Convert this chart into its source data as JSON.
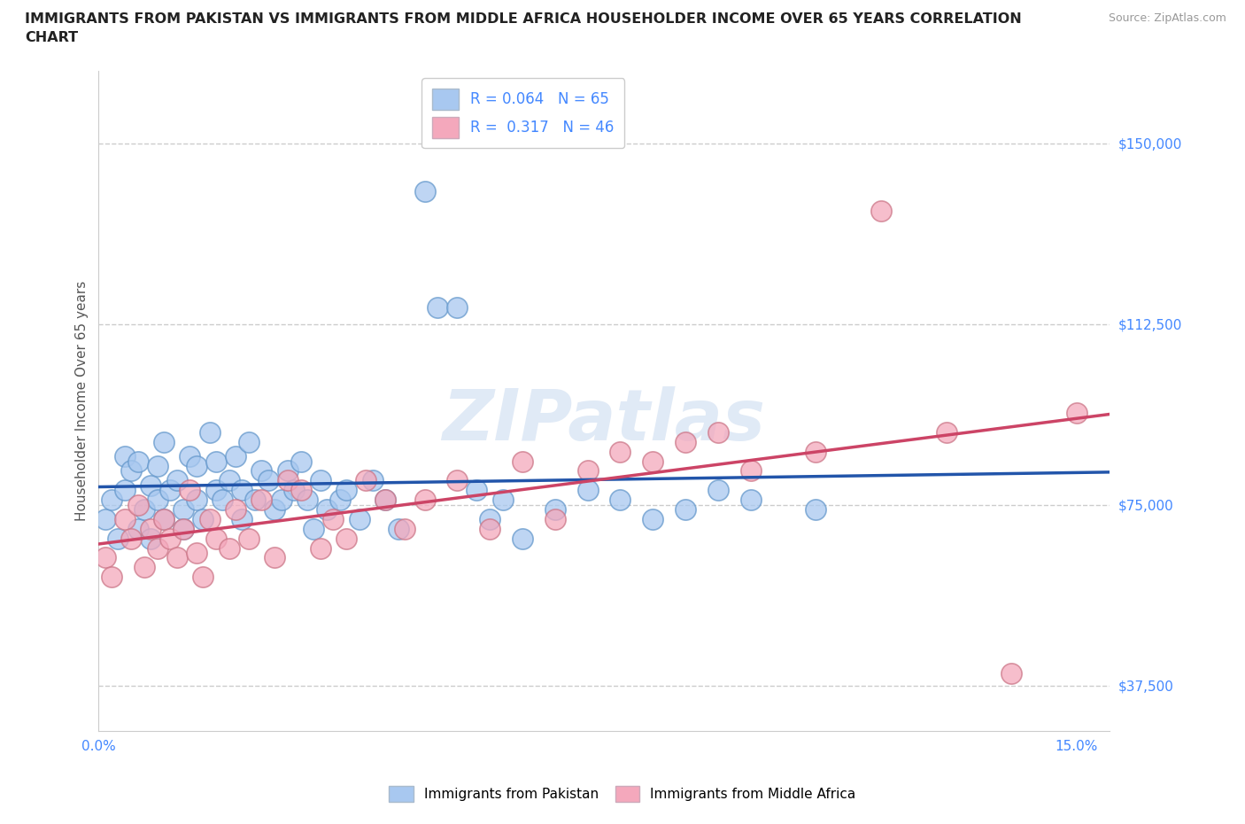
{
  "title_line1": "IMMIGRANTS FROM PAKISTAN VS IMMIGRANTS FROM MIDDLE AFRICA HOUSEHOLDER INCOME OVER 65 YEARS CORRELATION",
  "title_line2": "CHART",
  "source": "Source: ZipAtlas.com",
  "ylabel": "Householder Income Over 65 years",
  "xlim": [
    0.0,
    0.155
  ],
  "ylim": [
    28000,
    165000
  ],
  "yticks": [
    37500,
    75000,
    112500,
    150000
  ],
  "ytick_labels": [
    "$37,500",
    "$75,000",
    "$112,500",
    "$150,000"
  ],
  "xtick_positions": [
    0.0,
    0.025,
    0.05,
    0.075,
    0.1,
    0.125,
    0.15
  ],
  "xtick_labels": [
    "0.0%",
    "",
    "",
    "",
    "",
    "",
    "15.0%"
  ],
  "color_pakistan": "#a8c8f0",
  "color_africa": "#f4a8bc",
  "line_color_pakistan": "#2255aa",
  "line_color_africa": "#cc4466",
  "R_pakistan": 0.064,
  "N_pakistan": 65,
  "R_africa": 0.317,
  "N_africa": 46,
  "pakistan_x": [
    0.001,
    0.002,
    0.003,
    0.004,
    0.004,
    0.005,
    0.006,
    0.006,
    0.007,
    0.008,
    0.008,
    0.009,
    0.009,
    0.01,
    0.01,
    0.011,
    0.012,
    0.013,
    0.013,
    0.014,
    0.015,
    0.015,
    0.016,
    0.017,
    0.018,
    0.018,
    0.019,
    0.02,
    0.021,
    0.022,
    0.022,
    0.023,
    0.024,
    0.025,
    0.026,
    0.027,
    0.028,
    0.029,
    0.03,
    0.031,
    0.032,
    0.033,
    0.034,
    0.035,
    0.037,
    0.038,
    0.04,
    0.042,
    0.044,
    0.046,
    0.05,
    0.052,
    0.055,
    0.058,
    0.06,
    0.062,
    0.065,
    0.07,
    0.075,
    0.08,
    0.085,
    0.09,
    0.095,
    0.1,
    0.11
  ],
  "pakistan_y": [
    72000,
    76000,
    68000,
    85000,
    78000,
    82000,
    70000,
    84000,
    74000,
    79000,
    68000,
    76000,
    83000,
    72000,
    88000,
    78000,
    80000,
    74000,
    70000,
    85000,
    76000,
    83000,
    72000,
    90000,
    78000,
    84000,
    76000,
    80000,
    85000,
    72000,
    78000,
    88000,
    76000,
    82000,
    80000,
    74000,
    76000,
    82000,
    78000,
    84000,
    76000,
    70000,
    80000,
    74000,
    76000,
    78000,
    72000,
    80000,
    76000,
    70000,
    140000,
    116000,
    116000,
    78000,
    72000,
    76000,
    68000,
    74000,
    78000,
    76000,
    72000,
    74000,
    78000,
    76000,
    74000
  ],
  "africa_x": [
    0.001,
    0.002,
    0.004,
    0.005,
    0.006,
    0.007,
    0.008,
    0.009,
    0.01,
    0.011,
    0.012,
    0.013,
    0.014,
    0.015,
    0.016,
    0.017,
    0.018,
    0.02,
    0.021,
    0.023,
    0.025,
    0.027,
    0.029,
    0.031,
    0.034,
    0.036,
    0.038,
    0.041,
    0.044,
    0.047,
    0.05,
    0.055,
    0.06,
    0.065,
    0.07,
    0.075,
    0.08,
    0.085,
    0.09,
    0.095,
    0.1,
    0.11,
    0.12,
    0.13,
    0.14,
    0.15
  ],
  "africa_y": [
    64000,
    60000,
    72000,
    68000,
    75000,
    62000,
    70000,
    66000,
    72000,
    68000,
    64000,
    70000,
    78000,
    65000,
    60000,
    72000,
    68000,
    66000,
    74000,
    68000,
    76000,
    64000,
    80000,
    78000,
    66000,
    72000,
    68000,
    80000,
    76000,
    70000,
    76000,
    80000,
    70000,
    84000,
    72000,
    82000,
    86000,
    84000,
    88000,
    90000,
    82000,
    86000,
    136000,
    90000,
    40000,
    94000
  ],
  "watermark": "ZIPatlas",
  "background_color": "#ffffff",
  "grid_color": "#cccccc"
}
